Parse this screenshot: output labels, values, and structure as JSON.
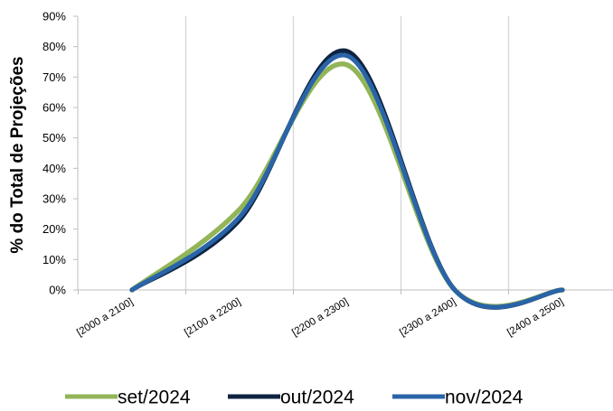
{
  "chart_data": {
    "type": "line",
    "ylabel": "% do Total de Projeções",
    "xlabel": "",
    "title": "",
    "categories": [
      "[2000 a 2100]",
      "[2100 a 2200]",
      "[2200 a 2300]",
      "[2300 a 2400]",
      "[2400 a 2500]"
    ],
    "ylim": [
      0,
      90
    ],
    "yticks": [
      0,
      10,
      20,
      30,
      40,
      50,
      60,
      70,
      80,
      90
    ],
    "ytick_labels": [
      "0%",
      "10%",
      "20%",
      "30%",
      "40%",
      "50%",
      "60%",
      "70%",
      "80%",
      "90%"
    ],
    "grid": "vertical",
    "smooth": true,
    "legend_position": "bottom",
    "series": [
      {
        "name": "set/2024",
        "color": "#92b558",
        "values": [
          0,
          26.5,
          74,
          0,
          0
        ]
      },
      {
        "name": "out/2024",
        "color": "#0d2340",
        "values": [
          0,
          23,
          78.5,
          0,
          0
        ]
      },
      {
        "name": "nov/2024",
        "color": "#2a64a8",
        "values": [
          0,
          24,
          77,
          0,
          0
        ]
      }
    ]
  }
}
